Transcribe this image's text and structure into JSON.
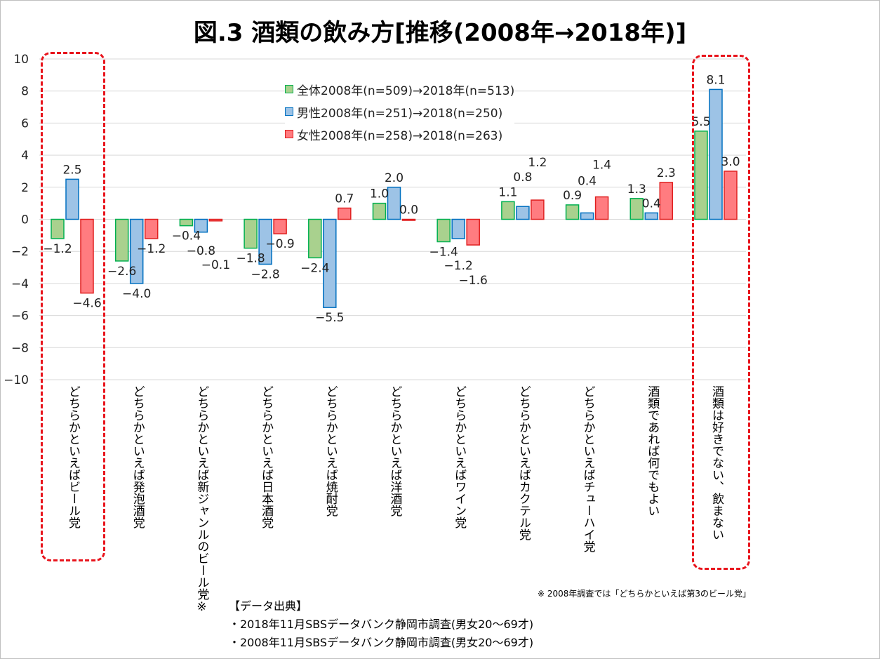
{
  "title": "図.3 酒類の飲み方[推移(2008年→2018年)]",
  "chart_data": {
    "type": "bar",
    "title": "図.3 酒類の飲み方[推移(2008年→2018年)]",
    "ylim": [
      -10,
      10
    ],
    "yticks": [
      10,
      8,
      6,
      4,
      2,
      0,
      -2,
      -4,
      -6,
      -8,
      -10
    ],
    "grid": true,
    "legend_position": "top-center",
    "categories": [
      "どちらかといえばビール党",
      "どちらかといえば発泡酒党",
      "どちらかといえば新ジャンルのビール党※",
      "どちらかといえば日本酒党",
      "どちらかといえば焼酎党",
      "どちらかといえば洋酒党",
      "どちらかといえばワイン党",
      "どちらかといえばカクテル党",
      "どちらかといえばチューハイ党",
      "酒類であれば何でもよい",
      "酒類は好きでない、飲まない"
    ],
    "series": [
      {
        "name": "全体2008年(n=509)→2018年(n=513)",
        "color": "#a9d18e",
        "border": "#00b050",
        "values": [
          -1.2,
          -2.6,
          -0.4,
          -1.8,
          -2.4,
          1.0,
          -1.4,
          1.1,
          0.9,
          1.3,
          5.5
        ]
      },
      {
        "name": "男性2008年(n=251)→2018(n=250)",
        "color": "#9dc3e6",
        "border": "#0070c0",
        "values": [
          2.5,
          -4.0,
          -0.8,
          -2.8,
          -5.5,
          2.0,
          -1.2,
          0.8,
          0.4,
          0.4,
          8.1
        ]
      },
      {
        "name": "女性2008年(n=258)→2018(n=263)",
        "color": "#ff7c80",
        "border": "#e02020",
        "values": [
          -4.6,
          -1.2,
          -0.1,
          -0.9,
          0.7,
          0.0,
          -1.6,
          1.2,
          1.4,
          2.3,
          3.0
        ]
      }
    ],
    "highlighted_categories": [
      "どちらかといえばビール党",
      "酒類は好きでない、飲まない"
    ],
    "highlight_color": "#e8141c"
  },
  "footnote": "※ 2008年調査では「どちらかといえば第3のビール党」",
  "source": {
    "heading": "【データ出典】",
    "lines": [
      "・2018年11月SBSデータバンク静岡市調査(男女20～69才)",
      "・2008年11月SBSデータバンク静岡市調査(男女20～69才)"
    ]
  }
}
